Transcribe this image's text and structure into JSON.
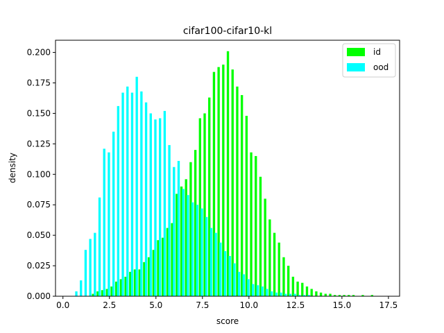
{
  "chart_data": {
    "type": "bar",
    "title": "cifar100-cifar10-kl",
    "xlabel": "score",
    "ylabel": "density",
    "xlim": [
      -0.4,
      18.1
    ],
    "ylim": [
      0,
      0.21
    ],
    "xticks": [
      0.0,
      2.5,
      5.0,
      7.5,
      10.0,
      12.5,
      15.0,
      17.5
    ],
    "xtick_labels": [
      "0.0",
      "2.5",
      "5.0",
      "7.5",
      "10.0",
      "12.5",
      "15.0",
      "17.5"
    ],
    "yticks": [
      0,
      0.025,
      0.05,
      0.075,
      0.1,
      0.125,
      0.15,
      0.175,
      0.2
    ],
    "ytick_labels": [
      "0.000",
      "0.025",
      "0.050",
      "0.075",
      "0.100",
      "0.125",
      "0.150",
      "0.175",
      "0.200"
    ],
    "grid": false,
    "legend_position": "top-right",
    "series": [
      {
        "name": "id",
        "color": "#00ff00",
        "x": [
          1.62,
          1.87,
          2.12,
          2.37,
          2.62,
          2.87,
          3.12,
          3.37,
          3.62,
          3.87,
          4.12,
          4.37,
          4.62,
          4.87,
          5.12,
          5.37,
          5.62,
          5.87,
          6.12,
          6.37,
          6.62,
          6.87,
          7.12,
          7.37,
          7.62,
          7.87,
          8.12,
          8.37,
          8.62,
          8.87,
          9.12,
          9.37,
          9.62,
          9.87,
          10.12,
          10.37,
          10.62,
          10.87,
          11.12,
          11.37,
          11.62,
          11.87,
          12.12,
          12.37,
          12.62,
          12.87,
          13.12,
          13.37,
          13.62,
          13.87,
          14.12,
          14.37,
          14.62,
          14.87,
          15.12,
          15.37,
          15.62,
          16.12,
          16.62
        ],
        "values": [
          0.002,
          0.004,
          0.005,
          0.006,
          0.008,
          0.012,
          0.014,
          0.016,
          0.02,
          0.022,
          0.022,
          0.028,
          0.032,
          0.038,
          0.046,
          0.048,
          0.056,
          0.06,
          0.084,
          0.09,
          0.096,
          0.11,
          0.12,
          0.146,
          0.15,
          0.163,
          0.184,
          0.188,
          0.19,
          0.201,
          0.186,
          0.172,
          0.165,
          0.148,
          0.118,
          0.115,
          0.098,
          0.08,
          0.063,
          0.052,
          0.044,
          0.032,
          0.025,
          0.016,
          0.012,
          0.011,
          0.008,
          0.006,
          0.004,
          0.003,
          0.002,
          0.002,
          0.001,
          0.001,
          0.001,
          0.001,
          0.001,
          0.001,
          0.001
        ]
      },
      {
        "name": "ood",
        "color": "#00ffff",
        "x": [
          0.72,
          0.97,
          1.22,
          1.47,
          1.72,
          1.97,
          2.22,
          2.47,
          2.72,
          2.97,
          3.22,
          3.47,
          3.72,
          3.97,
          4.22,
          4.47,
          4.72,
          4.97,
          5.22,
          5.47,
          5.72,
          5.97,
          6.22,
          6.47,
          6.72,
          6.97,
          7.22,
          7.47,
          7.72,
          7.97,
          8.22,
          8.47,
          8.72,
          8.97,
          9.22,
          9.47,
          9.72,
          9.97,
          10.22,
          10.47,
          10.72,
          10.97,
          11.22,
          11.47,
          11.72,
          11.97,
          12.22,
          12.47,
          12.72,
          12.97,
          13.22
        ],
        "values": [
          0.004,
          0.013,
          0.038,
          0.047,
          0.052,
          0.081,
          0.121,
          0.118,
          0.135,
          0.156,
          0.167,
          0.172,
          0.167,
          0.18,
          0.168,
          0.159,
          0.15,
          0.145,
          0.146,
          0.152,
          0.124,
          0.106,
          0.111,
          0.088,
          0.083,
          0.077,
          0.075,
          0.072,
          0.065,
          0.056,
          0.052,
          0.044,
          0.037,
          0.033,
          0.027,
          0.02,
          0.018,
          0.014,
          0.01,
          0.009,
          0.008,
          0.006,
          0.004,
          0.003,
          0.003,
          0.002,
          0.002,
          0.002,
          0.001,
          0.001,
          0.001
        ]
      }
    ]
  }
}
